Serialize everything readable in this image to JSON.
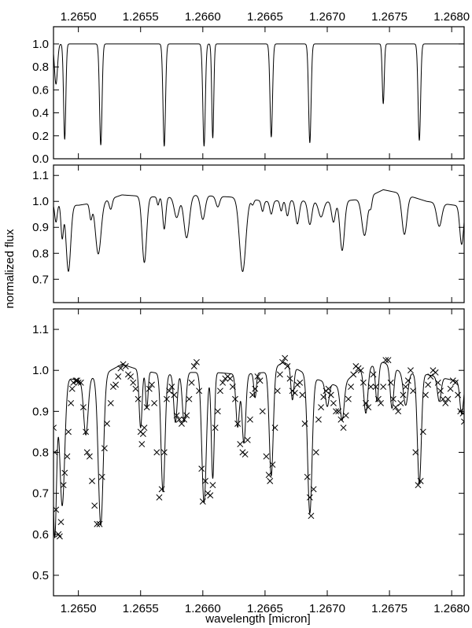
{
  "chart_data": [
    {
      "type": "line",
      "xlim": [
        1.2648,
        1.2681
      ],
      "ylim": [
        0.0,
        1.15
      ],
      "x_ticks": [
        "1.2650",
        "1.2655",
        "1.2660",
        "1.2665",
        "1.2670",
        "1.2675",
        "1.2680"
      ],
      "x_tick_values": [
        1.265,
        1.2655,
        1.266,
        1.2665,
        1.267,
        1.2675,
        1.268
      ],
      "y_ticks": [
        "0.0",
        "0.2",
        "0.4",
        "0.6",
        "0.8",
        "1.0"
      ],
      "y_tick_values": [
        0.0,
        0.2,
        0.4,
        0.6,
        0.8,
        1.0
      ],
      "x_tick_labels_position": "top",
      "baseline": 1.0,
      "lines": [
        {
          "x": 1.26482,
          "depth": 0.35,
          "width": 1.2e-05
        },
        {
          "x": 1.26489,
          "depth": 0.83,
          "width": 9e-06
        },
        {
          "x": 1.26518,
          "depth": 0.88,
          "width": 1e-05
        },
        {
          "x": 1.26569,
          "depth": 0.89,
          "width": 1e-05
        },
        {
          "x": 1.26601,
          "depth": 0.89,
          "width": 1e-05
        },
        {
          "x": 1.26608,
          "depth": 0.82,
          "width": 8e-06
        },
        {
          "x": 1.26655,
          "depth": 0.81,
          "width": 1e-05
        },
        {
          "x": 1.26686,
          "depth": 0.86,
          "width": 1e-05
        },
        {
          "x": 1.26745,
          "depth": 0.52,
          "width": 8e-06
        },
        {
          "x": 1.26774,
          "depth": 0.84,
          "width": 1e-05
        }
      ],
      "grid": false,
      "legend": "none"
    },
    {
      "type": "line",
      "xlim": [
        1.2648,
        1.2681
      ],
      "ylim": [
        0.61,
        1.14
      ],
      "y_ticks": [
        "0.7",
        "0.8",
        "0.9",
        "1.0",
        "1.1"
      ],
      "y_tick_values": [
        0.7,
        0.8,
        0.9,
        1.0,
        1.1
      ],
      "continuum": [
        [
          1.2648,
          0.99
        ],
        [
          1.265,
          0.985
        ],
        [
          1.2652,
          1.0
        ],
        [
          1.26535,
          1.025
        ],
        [
          1.2655,
          1.02
        ],
        [
          1.2657,
          1.015
        ],
        [
          1.2659,
          1.025
        ],
        [
          1.2661,
          1.02
        ],
        [
          1.2663,
          1.015
        ],
        [
          1.2665,
          1.0
        ],
        [
          1.2667,
          1.005
        ],
        [
          1.2669,
          1.0
        ],
        [
          1.2671,
          1.0
        ],
        [
          1.2673,
          1.01
        ],
        [
          1.26745,
          1.045
        ],
        [
          1.2676,
          1.03
        ],
        [
          1.2678,
          1.0
        ],
        [
          1.2681,
          0.98
        ]
      ],
      "lines": [
        {
          "x": 1.26482,
          "depth": 0.07,
          "width": 1e-05
        },
        {
          "x": 1.26487,
          "depth": 0.13,
          "width": 1e-05
        },
        {
          "x": 1.26492,
          "depth": 0.26,
          "width": 1.8e-05
        },
        {
          "x": 1.2651,
          "depth": 0.06,
          "width": 1e-05
        },
        {
          "x": 1.26516,
          "depth": 0.2,
          "width": 2.2e-05
        },
        {
          "x": 1.26526,
          "depth": 0.04,
          "width": 1.2e-05
        },
        {
          "x": 1.26553,
          "depth": 0.25,
          "width": 1.8e-05
        },
        {
          "x": 1.26564,
          "depth": 0.03,
          "width": 8e-06
        },
        {
          "x": 1.26569,
          "depth": 0.12,
          "width": 1.2e-05
        },
        {
          "x": 1.26579,
          "depth": 0.08,
          "width": 2e-05
        },
        {
          "x": 1.26587,
          "depth": 0.16,
          "width": 2.2e-05
        },
        {
          "x": 1.266,
          "depth": 0.09,
          "width": 1.8e-05
        },
        {
          "x": 1.26612,
          "depth": 0.04,
          "width": 1.5e-05
        },
        {
          "x": 1.26632,
          "depth": 0.28,
          "width": 2.5e-05
        },
        {
          "x": 1.2664,
          "depth": 0.02,
          "width": 1e-05
        },
        {
          "x": 1.26648,
          "depth": 0.04,
          "width": 1e-05
        },
        {
          "x": 1.26655,
          "depth": 0.05,
          "width": 1.2e-05
        },
        {
          "x": 1.26663,
          "depth": 0.04,
          "width": 1e-05
        },
        {
          "x": 1.26668,
          "depth": 0.06,
          "width": 1.2e-05
        },
        {
          "x": 1.26676,
          "depth": 0.09,
          "width": 1.5e-05
        },
        {
          "x": 1.26686,
          "depth": 0.09,
          "width": 1.6e-05
        },
        {
          "x": 1.26695,
          "depth": 0.06,
          "width": 2e-05
        },
        {
          "x": 1.26705,
          "depth": 0.08,
          "width": 1.5e-05
        },
        {
          "x": 1.26712,
          "depth": 0.19,
          "width": 1.8e-05
        },
        {
          "x": 1.2673,
          "depth": 0.14,
          "width": 2.2e-05
        },
        {
          "x": 1.26735,
          "depth": 0.04,
          "width": 1e-05
        },
        {
          "x": 1.26762,
          "depth": 0.15,
          "width": 2e-05
        },
        {
          "x": 1.2679,
          "depth": 0.09,
          "width": 2e-05
        },
        {
          "x": 1.26808,
          "depth": 0.15,
          "width": 1.5e-05
        }
      ],
      "grid": false,
      "legend": "none"
    },
    {
      "type": "line",
      "xlim": [
        1.2648,
        1.2681
      ],
      "ylim": [
        0.45,
        1.15
      ],
      "x_ticks": [
        "1.2650",
        "1.2655",
        "1.2660",
        "1.2665",
        "1.2670",
        "1.2675",
        "1.2680"
      ],
      "x_tick_values": [
        1.265,
        1.2655,
        1.266,
        1.2665,
        1.267,
        1.2675,
        1.268
      ],
      "y_ticks": [
        "0.5",
        "0.6",
        "0.7",
        "0.8",
        "0.9",
        "1.0",
        "1.1"
      ],
      "y_tick_values": [
        0.5,
        0.6,
        0.7,
        0.8,
        0.9,
        1.0,
        1.1
      ],
      "continuum": [
        [
          1.2648,
          0.99
        ],
        [
          1.265,
          0.975
        ],
        [
          1.2652,
          0.99
        ],
        [
          1.26535,
          1.015
        ],
        [
          1.2655,
          1.0
        ],
        [
          1.2657,
          0.99
        ],
        [
          1.2659,
          0.995
        ],
        [
          1.2661,
          0.995
        ],
        [
          1.2663,
          0.99
        ],
        [
          1.2665,
          0.995
        ],
        [
          1.26665,
          1.02
        ],
        [
          1.2669,
          0.98
        ],
        [
          1.2671,
          0.96
        ],
        [
          1.26725,
          1.0
        ],
        [
          1.26745,
          1.02
        ],
        [
          1.2676,
          0.995
        ],
        [
          1.2678,
          0.99
        ],
        [
          1.2681,
          0.97
        ]
      ],
      "lines": [
        {
          "x": 1.26481,
          "depth": 0.4,
          "width": 1.5e-05
        },
        {
          "x": 1.26487,
          "depth": 0.32,
          "width": 2e-05
        },
        {
          "x": 1.26506,
          "depth": 0.14,
          "width": 1.8e-05
        },
        {
          "x": 1.26518,
          "depth": 0.37,
          "width": 2e-05
        },
        {
          "x": 1.2655,
          "depth": 0.14,
          "width": 1.2e-05
        },
        {
          "x": 1.26555,
          "depth": 0.09,
          "width": 1e-05
        },
        {
          "x": 1.26568,
          "depth": 0.29,
          "width": 1.6e-05
        },
        {
          "x": 1.26578,
          "depth": 0.12,
          "width": 1.4e-05
        },
        {
          "x": 1.26585,
          "depth": 0.12,
          "width": 1.5e-05
        },
        {
          "x": 1.26601,
          "depth": 0.32,
          "width": 1.8e-05
        },
        {
          "x": 1.26608,
          "depth": 0.26,
          "width": 1.2e-05
        },
        {
          "x": 1.26628,
          "depth": 0.13,
          "width": 1.4e-05
        },
        {
          "x": 1.26633,
          "depth": 0.17,
          "width": 1.5e-05
        },
        {
          "x": 1.26642,
          "depth": 0.06,
          "width": 1e-05
        },
        {
          "x": 1.26655,
          "depth": 0.26,
          "width": 1.6e-05
        },
        {
          "x": 1.26672,
          "depth": 0.08,
          "width": 1.2e-05
        },
        {
          "x": 1.26686,
          "depth": 0.34,
          "width": 1.8e-05
        },
        {
          "x": 1.267,
          "depth": 0.06,
          "width": 1.5e-05
        },
        {
          "x": 1.26712,
          "depth": 0.09,
          "width": 1.6e-05
        },
        {
          "x": 1.26731,
          "depth": 0.11,
          "width": 1.6e-05
        },
        {
          "x": 1.2674,
          "depth": 0.09,
          "width": 1.2e-05
        },
        {
          "x": 1.26752,
          "depth": 0.1,
          "width": 1.4e-05
        },
        {
          "x": 1.26763,
          "depth": 0.08,
          "width": 1.8e-05
        },
        {
          "x": 1.26774,
          "depth": 0.27,
          "width": 1.6e-05
        },
        {
          "x": 1.2679,
          "depth": 0.06,
          "width": 1.5e-05
        },
        {
          "x": 1.26808,
          "depth": 0.08,
          "width": 1.4e-05
        }
      ],
      "observed_points": [
        [
          1.2648,
          0.86
        ],
        [
          1.26481,
          0.8
        ],
        [
          1.26482,
          0.66
        ],
        [
          1.26484,
          0.6
        ],
        [
          1.26485,
          0.595
        ],
        [
          1.26486,
          0.63
        ],
        [
          1.26488,
          0.72
        ],
        [
          1.26489,
          0.75
        ],
        [
          1.26491,
          0.79
        ],
        [
          1.26492,
          0.85
        ],
        [
          1.26494,
          0.92
        ],
        [
          1.26495,
          0.955
        ],
        [
          1.26496,
          0.97
        ],
        [
          1.26498,
          0.975
        ],
        [
          1.26499,
          0.975
        ],
        [
          1.265,
          0.97
        ],
        [
          1.26502,
          0.97
        ],
        [
          1.26504,
          0.91
        ],
        [
          1.26506,
          0.85
        ],
        [
          1.26507,
          0.8
        ],
        [
          1.26509,
          0.79
        ],
        [
          1.26511,
          0.73
        ],
        [
          1.26513,
          0.67
        ],
        [
          1.26515,
          0.625
        ],
        [
          1.26517,
          0.625
        ],
        [
          1.26519,
          0.74
        ],
        [
          1.26521,
          0.81
        ],
        [
          1.26523,
          0.87
        ],
        [
          1.26526,
          0.92
        ],
        [
          1.26528,
          0.96
        ],
        [
          1.2653,
          0.965
        ],
        [
          1.26532,
          0.985
        ],
        [
          1.26534,
          1.005
        ],
        [
          1.26536,
          1.015
        ],
        [
          1.26538,
          1.01
        ],
        [
          1.2654,
          0.99
        ],
        [
          1.26542,
          0.985
        ],
        [
          1.26544,
          0.97
        ],
        [
          1.26546,
          0.955
        ],
        [
          1.26548,
          0.93
        ],
        [
          1.2655,
          0.85
        ],
        [
          1.26551,
          0.82
        ],
        [
          1.26552,
          0.845
        ],
        [
          1.26553,
          0.86
        ],
        [
          1.26555,
          0.91
        ],
        [
          1.26557,
          0.955
        ],
        [
          1.26559,
          0.965
        ],
        [
          1.26561,
          0.92
        ],
        [
          1.26563,
          0.8
        ],
        [
          1.26565,
          0.69
        ],
        [
          1.26567,
          0.71
        ],
        [
          1.26569,
          0.8
        ],
        [
          1.26571,
          0.93
        ],
        [
          1.26573,
          0.95
        ],
        [
          1.26575,
          0.96
        ],
        [
          1.26577,
          0.94
        ],
        [
          1.26579,
          0.89
        ],
        [
          1.26581,
          0.88
        ],
        [
          1.26583,
          0.87
        ],
        [
          1.26585,
          0.88
        ],
        [
          1.26587,
          0.89
        ],
        [
          1.26589,
          0.93
        ],
        [
          1.26591,
          0.97
        ],
        [
          1.26593,
          1.01
        ],
        [
          1.26595,
          1.02
        ],
        [
          1.26597,
          0.95
        ],
        [
          1.26599,
          0.76
        ],
        [
          1.266,
          0.68
        ],
        [
          1.26602,
          0.73
        ],
        [
          1.26604,
          0.7
        ],
        [
          1.26606,
          0.695
        ],
        [
          1.26608,
          0.72
        ],
        [
          1.2661,
          0.86
        ],
        [
          1.26612,
          0.9
        ],
        [
          1.26614,
          0.95
        ],
        [
          1.26616,
          0.97
        ],
        [
          1.26618,
          0.98
        ],
        [
          1.2662,
          0.985
        ],
        [
          1.26622,
          0.98
        ],
        [
          1.26624,
          0.96
        ],
        [
          1.26626,
          0.93
        ],
        [
          1.26628,
          0.87
        ],
        [
          1.2663,
          0.82
        ],
        [
          1.26632,
          0.8
        ],
        [
          1.26634,
          0.795
        ],
        [
          1.26636,
          0.83
        ],
        [
          1.26638,
          0.88
        ],
        [
          1.2664,
          0.94
        ],
        [
          1.26642,
          0.955
        ],
        [
          1.26644,
          0.985
        ],
        [
          1.26646,
          0.975
        ],
        [
          1.26648,
          0.9
        ],
        [
          1.26651,
          0.79
        ],
        [
          1.26653,
          0.745
        ],
        [
          1.26654,
          0.73
        ],
        [
          1.26656,
          0.77
        ],
        [
          1.26658,
          0.86
        ],
        [
          1.2666,
          0.95
        ],
        [
          1.26662,
          0.99
        ],
        [
          1.26664,
          1.02
        ],
        [
          1.26666,
          1.03
        ],
        [
          1.26668,
          1.01
        ],
        [
          1.2667,
          0.98
        ],
        [
          1.26672,
          0.95
        ],
        [
          1.26674,
          0.945
        ],
        [
          1.26676,
          0.965
        ],
        [
          1.26678,
          0.97
        ],
        [
          1.2668,
          0.94
        ],
        [
          1.26682,
          0.87
        ],
        [
          1.26684,
          0.74
        ],
        [
          1.26686,
          0.69
        ],
        [
          1.26687,
          0.645
        ],
        [
          1.26689,
          0.71
        ],
        [
          1.26691,
          0.8
        ],
        [
          1.26693,
          0.88
        ],
        [
          1.26695,
          0.91
        ],
        [
          1.26697,
          0.935
        ],
        [
          1.26699,
          0.95
        ],
        [
          1.26701,
          0.955
        ],
        [
          1.26703,
          0.94
        ],
        [
          1.26705,
          0.92
        ],
        [
          1.26707,
          0.9
        ],
        [
          1.26709,
          0.9
        ],
        [
          1.26711,
          0.88
        ],
        [
          1.26713,
          0.86
        ],
        [
          1.26715,
          0.89
        ],
        [
          1.26717,
          0.93
        ],
        [
          1.26719,
          0.96
        ],
        [
          1.26721,
          0.99
        ],
        [
          1.26723,
          1.01
        ],
        [
          1.26725,
          1.005
        ],
        [
          1.26727,
          1.0
        ],
        [
          1.26729,
          0.97
        ],
        [
          1.26731,
          0.92
        ],
        [
          1.26733,
          0.91
        ],
        [
          1.26735,
          0.96
        ],
        [
          1.26737,
          0.99
        ],
        [
          1.26739,
          0.96
        ],
        [
          1.26741,
          0.93
        ],
        [
          1.26743,
          0.92
        ],
        [
          1.26745,
          0.96
        ],
        [
          1.26747,
          1.025
        ],
        [
          1.26749,
          1.025
        ],
        [
          1.26751,
          0.97
        ],
        [
          1.26753,
          0.93
        ],
        [
          1.26755,
          0.91
        ],
        [
          1.26757,
          0.9
        ],
        [
          1.26759,
          0.92
        ],
        [
          1.26761,
          0.94
        ],
        [
          1.26763,
          0.96
        ],
        [
          1.26765,
          0.975
        ],
        [
          1.26767,
          1.0
        ],
        [
          1.26769,
          0.95
        ],
        [
          1.26771,
          0.8
        ],
        [
          1.26773,
          0.72
        ],
        [
          1.26775,
          0.73
        ],
        [
          1.26777,
          0.85
        ],
        [
          1.26779,
          0.94
        ],
        [
          1.26781,
          0.965
        ],
        [
          1.26783,
          0.985
        ],
        [
          1.26785,
          1.0
        ],
        [
          1.26787,
          0.995
        ],
        [
          1.26789,
          0.97
        ],
        [
          1.26791,
          0.95
        ],
        [
          1.26793,
          0.93
        ],
        [
          1.26795,
          0.92
        ],
        [
          1.26797,
          0.93
        ],
        [
          1.26799,
          0.955
        ],
        [
          1.26801,
          0.975
        ],
        [
          1.26803,
          0.97
        ],
        [
          1.26805,
          0.94
        ],
        [
          1.26807,
          0.9
        ],
        [
          1.26809,
          0.895
        ],
        [
          1.2681,
          0.875
        ]
      ],
      "grid": false,
      "legend": "none"
    }
  ],
  "ylabel": "normalized flux",
  "xlabel": "wavelength [micron]"
}
